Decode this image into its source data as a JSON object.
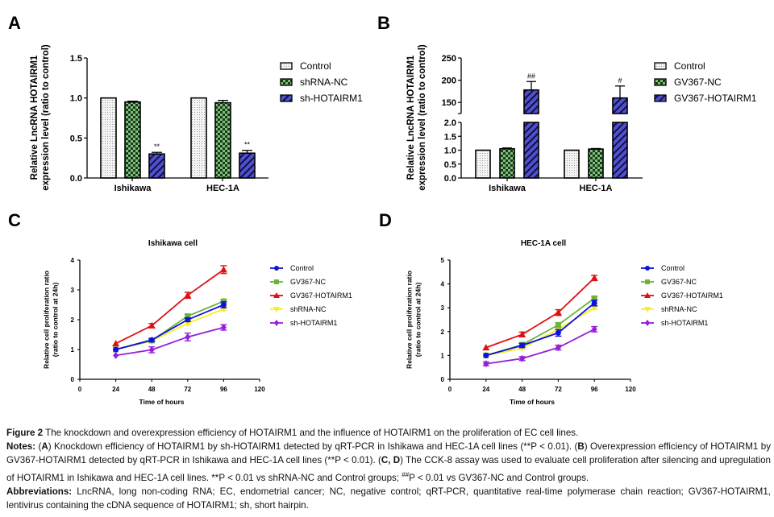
{
  "panels": {
    "A": "A",
    "B": "B",
    "C": "C",
    "D": "D"
  },
  "chart_data": [
    {
      "id": "A",
      "type": "bar",
      "title": "",
      "ylabel": "Relative LncRNA HOTAIRM1 expression level (ratio to control)",
      "ylabel_lines": [
        "Relative LncRNA HOTAIRM1",
        "expression level (ratio to control)"
      ],
      "xlabel": "",
      "categories": [
        "Ishikawa",
        "HEC-1A"
      ],
      "ylim": [
        0,
        1.5
      ],
      "yticks": [
        "0.0",
        "0.5",
        "1.0",
        "1.5"
      ],
      "ytick_values": [
        0,
        0.5,
        1.0,
        1.5
      ],
      "legend_position": "right",
      "series": [
        {
          "name": "Control",
          "pattern": "dots",
          "color": "#f2f2f2",
          "values": [
            1.0,
            1.0
          ],
          "errors": [
            0,
            0
          ]
        },
        {
          "name": "shRNA-NC",
          "pattern": "checker",
          "color": "#5aa05a",
          "values": [
            0.95,
            0.94
          ],
          "errors": [
            0.01,
            0.03
          ]
        },
        {
          "name": "sh-HOTAIRM1",
          "pattern": "stripes",
          "color": "#4848c8",
          "values": [
            0.3,
            0.31
          ],
          "errors": [
            0.02,
            0.035
          ]
        }
      ],
      "annotations": [
        {
          "category": "Ishikawa",
          "series": "sh-HOTAIRM1",
          "text": "**"
        },
        {
          "category": "HEC-1A",
          "series": "sh-HOTAIRM1",
          "text": "**"
        }
      ]
    },
    {
      "id": "B",
      "type": "bar",
      "title": "",
      "ylabel": "Relative LncRNA HOTAIRM1 expression level (ratio to control)",
      "ylabel_lines": [
        "Relative LncRNA HOTAIRM1",
        "expression level (ratio to control)"
      ],
      "xlabel": "",
      "categories": [
        "Ishikawa",
        "HEC-1A"
      ],
      "axis_break": true,
      "ylim_lower": [
        0,
        2.0
      ],
      "ylim_upper": [
        125,
        250
      ],
      "yticks_lower": [
        "0.0",
        "0.5",
        "1.0",
        "1.5",
        "2.0"
      ],
      "ytick_values_lower": [
        0,
        0.5,
        1.0,
        1.5,
        2.0
      ],
      "yticks_upper": [
        "150",
        "200",
        "250"
      ],
      "ytick_values_upper": [
        150,
        200,
        250
      ],
      "legend_position": "right",
      "series": [
        {
          "name": "Control",
          "pattern": "dots",
          "color": "#f2f2f2",
          "values": [
            1.0,
            1.0
          ],
          "errors": [
            0,
            0
          ]
        },
        {
          "name": "GV367-NC",
          "pattern": "checker",
          "color": "#5aa05a",
          "values": [
            1.05,
            1.04
          ],
          "errors": [
            0.03,
            0.02
          ]
        },
        {
          "name": "GV367-HOTAIRM1",
          "pattern": "stripes",
          "color": "#4848c8",
          "values": [
            178,
            160
          ],
          "errors": [
            19,
            27
          ]
        }
      ],
      "annotations": [
        {
          "category": "Ishikawa",
          "series": "GV367-HOTAIRM1",
          "text": "##"
        },
        {
          "category": "HEC-1A",
          "series": "GV367-HOTAIRM1",
          "text": "#"
        }
      ]
    },
    {
      "id": "C",
      "type": "line",
      "title": "Ishikawa cell",
      "xlabel": "Time of hours",
      "ylabel": "Relative cell proliferation ratio (ratio to control at 24h)",
      "ylabel_lines": [
        "Relative cell proliferation ratio",
        "(ratio to control at 24h)"
      ],
      "x": [
        24,
        48,
        72,
        96
      ],
      "xlim": [
        0,
        120
      ],
      "xticks": [
        "0",
        "24",
        "48",
        "72",
        "96",
        "120"
      ],
      "xtick_values": [
        0,
        24,
        48,
        72,
        96,
        120
      ],
      "ylim": [
        0,
        4
      ],
      "yticks": [
        "0",
        "1",
        "2",
        "3",
        "4"
      ],
      "ytick_values": [
        0,
        1,
        2,
        3,
        4
      ],
      "legend_position": "right",
      "series": [
        {
          "name": "Control",
          "color": "#1010e0",
          "marker": "circle",
          "values": [
            1.0,
            1.32,
            2.0,
            2.5
          ],
          "errors": [
            0.03,
            0.05,
            0.06,
            0.1
          ]
        },
        {
          "name": "GV367-NC",
          "color": "#6ab43c",
          "marker": "square",
          "values": [
            1.0,
            1.3,
            2.12,
            2.62
          ],
          "errors": [
            0.03,
            0.05,
            0.06,
            0.06
          ]
        },
        {
          "name": "GV367-HOTAIRM1",
          "color": "#e01010",
          "marker": "triangle",
          "values": [
            1.2,
            1.8,
            2.82,
            3.68
          ],
          "errors": [
            0.03,
            0.07,
            0.1,
            0.13
          ]
        },
        {
          "name": "shRNA-NC",
          "color": "#f8f020",
          "marker": "triangle-down",
          "values": [
            1.0,
            1.28,
            1.88,
            2.36
          ],
          "errors": [
            0.03,
            0.04,
            0.05,
            0.06
          ]
        },
        {
          "name": "sh-HOTAIRM1",
          "color": "#9420d8",
          "marker": "diamond",
          "values": [
            0.8,
            0.99,
            1.42,
            1.74
          ],
          "errors": [
            0.03,
            0.1,
            0.13,
            0.09
          ]
        }
      ]
    },
    {
      "id": "D",
      "type": "line",
      "title": "HEC-1A cell",
      "xlabel": "Time of hours",
      "ylabel": "Relative cell proliferation ratio (ratio to control at 24h)",
      "ylabel_lines": [
        "Relative cell proliferation ratio",
        "(ratio to control at 24h)"
      ],
      "x": [
        24,
        48,
        72,
        96
      ],
      "xlim": [
        0,
        120
      ],
      "xticks": [
        "0",
        "24",
        "48",
        "72",
        "96",
        "120"
      ],
      "xtick_values": [
        0,
        24,
        48,
        72,
        96,
        120
      ],
      "ylim": [
        0,
        5
      ],
      "yticks": [
        "0",
        "1",
        "2",
        "3",
        "4",
        "5"
      ],
      "ytick_values": [
        0,
        1,
        2,
        3,
        4,
        5
      ],
      "legend_position": "right",
      "series": [
        {
          "name": "Control",
          "color": "#1010e0",
          "marker": "circle",
          "values": [
            1.0,
            1.42,
            1.95,
            3.2
          ],
          "errors": [
            0.03,
            0.09,
            0.14,
            0.12
          ]
        },
        {
          "name": "GV367-NC",
          "color": "#6ab43c",
          "marker": "square",
          "values": [
            1.0,
            1.45,
            2.28,
            3.4
          ],
          "errors": [
            0.03,
            0.06,
            0.1,
            0.07
          ]
        },
        {
          "name": "GV367-HOTAIRM1",
          "color": "#e01010",
          "marker": "triangle",
          "values": [
            1.33,
            1.88,
            2.8,
            4.25
          ],
          "errors": [
            0.03,
            0.1,
            0.12,
            0.11
          ]
        },
        {
          "name": "shRNA-NC",
          "color": "#f8f020",
          "marker": "triangle-down",
          "values": [
            1.0,
            1.3,
            2.1,
            3.0
          ],
          "errors": [
            0.03,
            0.05,
            0.06,
            0.06
          ]
        },
        {
          "name": "sh-HOTAIRM1",
          "color": "#9420d8",
          "marker": "diamond",
          "values": [
            0.65,
            0.87,
            1.33,
            2.1
          ],
          "errors": [
            0.08,
            0.08,
            0.1,
            0.11
          ]
        }
      ]
    }
  ],
  "caption": {
    "figure_label": "Figure 2",
    "figure_text": " The knockdown and overexpression efficiency of HOTAIRM1 and the influence of HOTAIRM1 on the proliferation of EC cell lines.",
    "notes_label": "Notes:",
    "notes_a_open": " (",
    "notes_a_letter": "A",
    "notes_a_text": ") Knockdown efficiency of HOTAIRM1 by sh-HOTAIRM1 detected by qRT-PCR in Ishikawa and HEC-1A cell lines (**P < 0.01). (",
    "notes_b_letter": "B",
    "notes_b_text": ") Overexpression efficiency of HOTAIRM1 by GV367-HOTAIRM1 detected by qRT-PCR in Ishikawa and HEC-1A cell lines (**P < 0.01). (",
    "notes_cd_letter": "C, D",
    "notes_cd_text": ") The CCK-8 assay was used to evaluate cell proliferation after silencing and upregulation of HOTAIRM1 in Ishikawa and HEC-1A cell lines. **P < 0.01 vs shRNA-NC and Control groups; ",
    "notes_hash_sup": "##",
    "notes_end": "P < 0.01 vs GV367-NC and Control groups.",
    "abbrev_label": "Abbreviations:",
    "abbrev_text": " LncRNA, long non-coding RNA; EC, endometrial cancer; NC, negative control; qRT-PCR, quantitative real-time polymerase chain reaction; GV367-HOTAIRM1, lentivirus containing the cDNA sequence of HOTAIRM1; sh, short hairpin."
  }
}
